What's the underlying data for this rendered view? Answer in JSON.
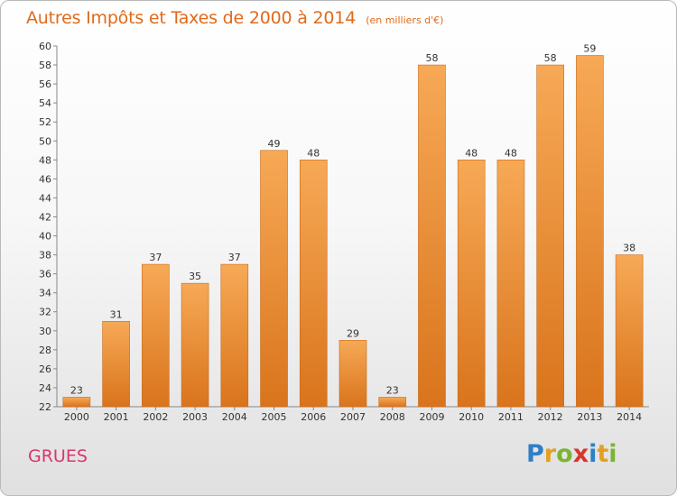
{
  "title": "Autres Impôts et Taxes de 2000 à 2014",
  "title_unit": "(en milliers d'€)",
  "place": "GRUES",
  "logo": {
    "letters": [
      "P",
      "r",
      "o",
      "x",
      "i",
      "t",
      "i"
    ],
    "colors": [
      "#2f7fc6",
      "#e5a020",
      "#7ab532",
      "#d9342b",
      "#2f7fc6",
      "#e5a020",
      "#7ab532"
    ]
  },
  "colors": {
    "bar_light": "#f7a956",
    "bar_dark": "#d9741c",
    "title": "#e06a1a",
    "place": "#d9356f"
  },
  "chart_data": {
    "type": "bar",
    "title": "Autres Impôts et Taxes de 2000 à 2014",
    "xlabel": "",
    "ylabel": "",
    "categories": [
      "2000",
      "2001",
      "2002",
      "2003",
      "2004",
      "2005",
      "2006",
      "2007",
      "2008",
      "2009",
      "2010",
      "2011",
      "2012",
      "2013",
      "2014"
    ],
    "values": [
      23,
      31,
      37,
      35,
      37,
      49,
      48,
      29,
      23,
      58,
      48,
      48,
      58,
      59,
      38
    ],
    "ylim": [
      22,
      60
    ],
    "yticks": [
      22,
      24,
      26,
      28,
      30,
      32,
      34,
      36,
      38,
      40,
      42,
      44,
      46,
      48,
      50,
      52,
      54,
      56,
      58,
      60
    ],
    "grid": false,
    "data_labels": true
  }
}
